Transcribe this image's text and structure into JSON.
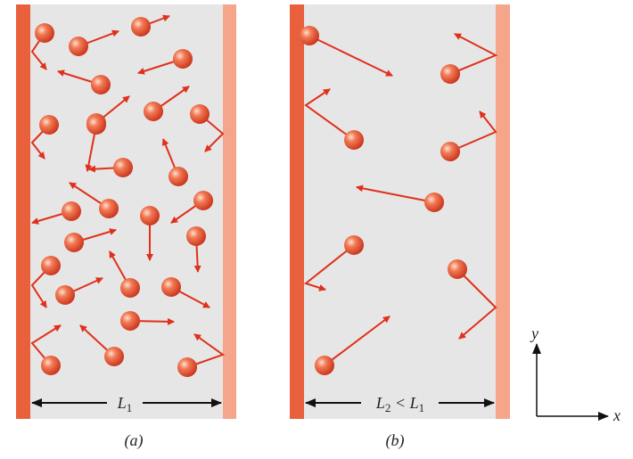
{
  "panels": [
    {
      "caption": "(a)",
      "dimension_label": [
        "L",
        "1"
      ]
    },
    {
      "caption": "(b)",
      "dimension_label": [
        "L",
        "2",
        " < L",
        "1"
      ]
    }
  ],
  "axes": {
    "y": "y",
    "x": "x"
  }
}
